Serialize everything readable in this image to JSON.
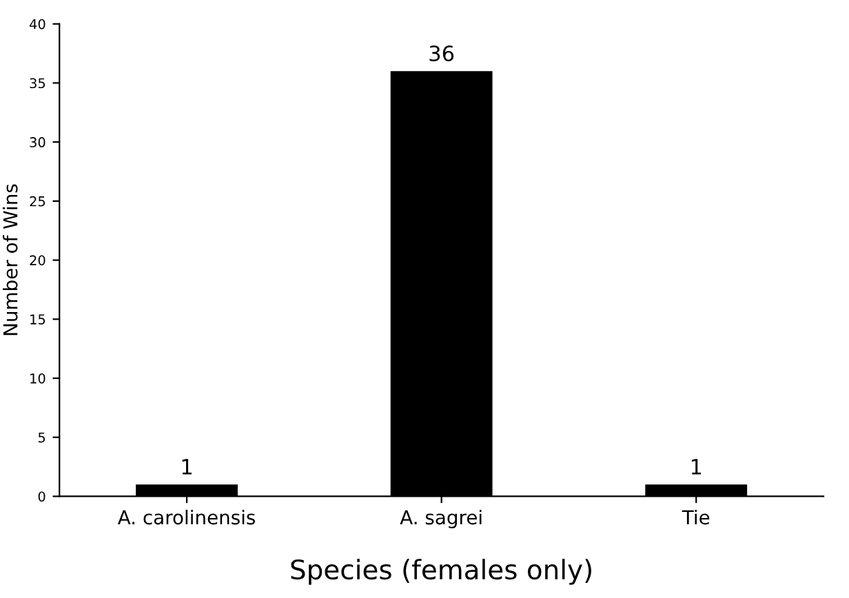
{
  "chart_data": {
    "type": "bar",
    "xlabel": "Species (females only)",
    "ylabel": "Number of Wins",
    "categories": [
      "A. carolinensis",
      "A. sagrei",
      "Tie"
    ],
    "values": [
      1,
      36,
      1
    ],
    "color": "#000000",
    "ylim": [
      0,
      40
    ],
    "yticks": [
      0,
      5,
      10,
      15,
      20,
      25,
      30,
      35,
      40
    ],
    "grid": false,
    "data_labels": true
  }
}
